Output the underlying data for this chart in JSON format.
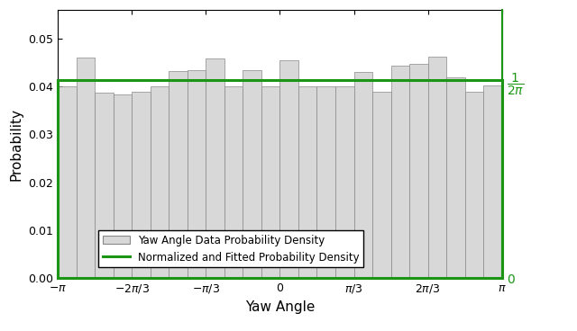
{
  "n_bars": 24,
  "bar_heights": [
    0.04,
    0.046,
    0.0388,
    0.0383,
    0.039,
    0.04,
    0.0433,
    0.0435,
    0.0458,
    0.04,
    0.0435,
    0.04,
    0.0455,
    0.04,
    0.04,
    0.04,
    0.043,
    0.039,
    0.0443,
    0.0448,
    0.0462,
    0.042,
    0.039,
    0.0403
  ],
  "bar_color": "#d8d8d8",
  "bar_edge_color": "#888888",
  "bar_edge_width": 0.5,
  "green_line_value": 0.04135,
  "green_color": "#1a9614",
  "green_linewidth": 2.2,
  "xlim": [
    -3.14159265,
    3.14159265
  ],
  "ylim": [
    0,
    0.056
  ],
  "yticks": [
    0,
    0.01,
    0.02,
    0.03,
    0.04,
    0.05
  ],
  "xtick_positions": [
    -3.14159265,
    -2.0943951,
    -1.04719755,
    0,
    1.04719755,
    2.0943951,
    3.14159265
  ],
  "xlabel": "Yaw Angle",
  "ylabel": "Probability",
  "legend_bar_label": "Yaw Angle Data Probability Density",
  "legend_line_label": "Normalized and Fitted Probability Density",
  "background_color": "#ffffff",
  "spine_color": "#000000"
}
